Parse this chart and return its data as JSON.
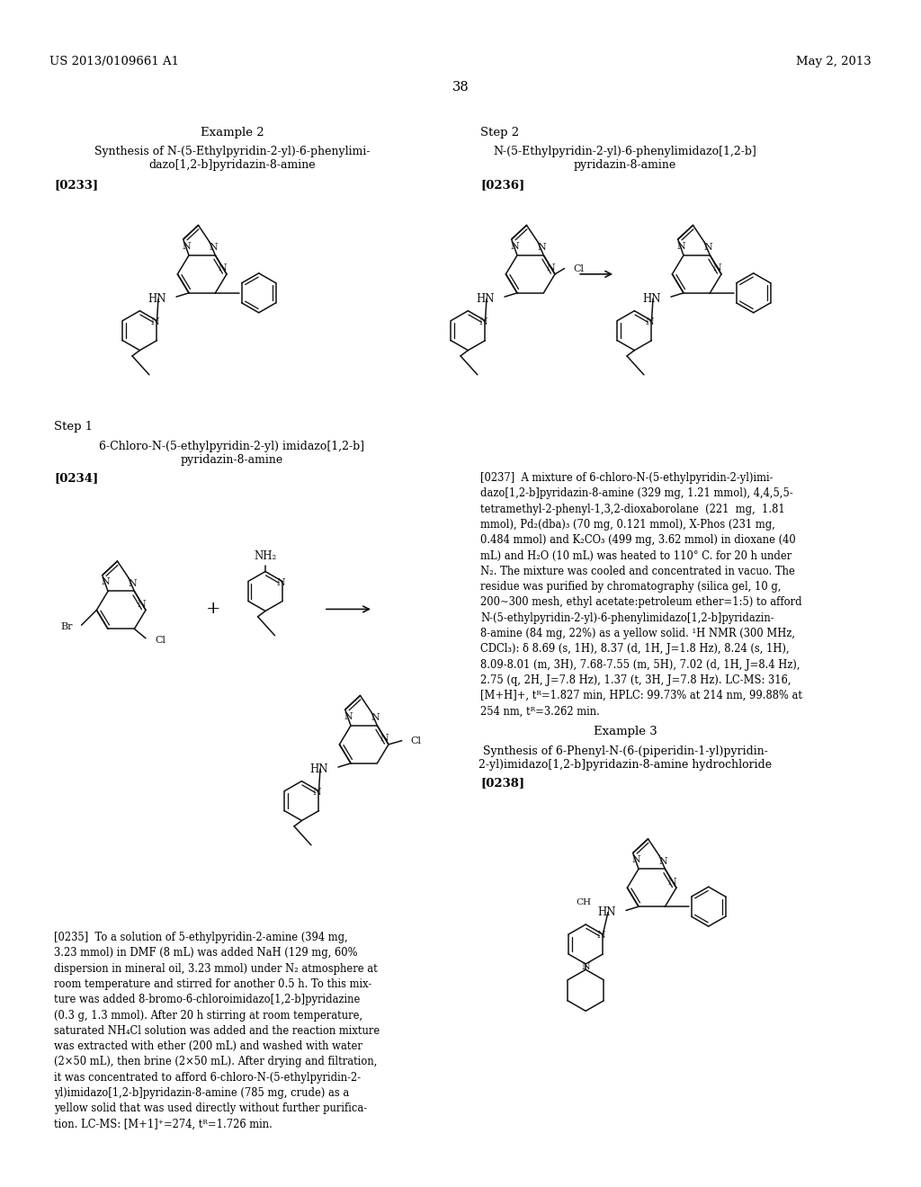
{
  "bg": "#ffffff",
  "header_left": "US 2013/0109661 A1",
  "header_right": "May 2, 2013",
  "page_num": "38",
  "ex2_title": "Example 2",
  "ex2_sub1": "Synthesis of N-(5-Ethylpyridin-2-yl)-6-phenylimi-",
  "ex2_sub2": "dazo[1,2-b]pyridazin-8-amine",
  "ref0233": "[0233]",
  "step2_title": "Step 2",
  "step2_sub1": "N-(5-Ethylpyridin-2-yl)-6-phenylimidazo[1,2-b]",
  "step2_sub2": "pyridazin-8-amine",
  "ref0236": "[0236]",
  "step1_title": "Step 1",
  "step1_sub1": "6-Chloro-N-(5-ethylpyridin-2-yl) imidazo[1,2-b]",
  "step1_sub2": "pyridazin-8-amine",
  "ref0234": "[0234]",
  "ref0235": "[0235]",
  "para0235": "To a solution of 5-ethylpyridin-2-amine (394 mg,\n3.23 mmol) in DMF (8 mL) was added NaH (129 mg, 60%\ndispersion in mineral oil, 3.23 mmol) under N₂ atmosphere at\nroom temperature and stirred for another 0.5 h. To this mix-\nture was added 8-bromo-6-chloroimidazo[1,2-b]pyridazine\n(0.3 g, 1.3 mmol). After 20 h stirring at room temperature,\nsaturated NH₄Cl solution was added and the reaction mixture\nwas extracted with ether (200 mL) and washed with water\n(2×50 mL), then brine (2×50 mL). After drying and filtration,\nit was concentrated to afford 6-chloro-N-(5-ethylpyridin-2-\nyl)imidazo[1,2-b]pyridazin-8-amine (785 mg, crude) as a\nyellow solid that was used directly without further purifica-\ntion. LC-MS: [M+1]⁺=274, tᴿ=1.726 min.",
  "ref0237": "[0237]",
  "para0237": "A mixture of 6-chloro-N-(5-ethylpyridin-2-yl)imi-\ndazo[1,2-b]pyridazin-8-amine (329 mg, 1.21 mmol), 4,4,5,5-\ntetramethyl-2-phenyl-1,3,2-dioxaborolane  (221  mg,  1.81\nmmol), Pd₂(dba)₃ (70 mg, 0.121 mmol), X-Phos (231 mg,\n0.484 mmol) and K₂CO₃ (499 mg, 3.62 mmol) in dioxane (40\nmL) and H₂O (10 mL) was heated to 110° C. for 20 h under\nN₂. The mixture was cooled and concentrated in vacuo. The\nresidue was purified by chromatography (silica gel, 10 g,\n200~300 mesh, ethyl acetate:petroleum ether=1:5) to afford\nN-(5-ethylpyridin-2-yl)-6-phenylimidazo[1,2-b]pyridazin-\n8-amine (84 mg, 22%) as a yellow solid. ¹H NMR (300 MHz,\nCDCl₃): δ 8.69 (s, 1H), 8.37 (d, 1H, J=1.8 Hz), 8.24 (s, 1H),\n8.09-8.01 (m, 3H), 7.68-7.55 (m, 5H), 7.02 (d, 1H, J=8.4 Hz),\n2.75 (q, 2H, J=7.8 Hz), 1.37 (t, 3H, J=7.8 Hz). LC-MS: 316,\n[M+H]+, tᴿ=1.827 min, HPLC: 99.73% at 214 nm, 99.88% at\n254 nm, tᴿ=3.262 min.",
  "ex3_title": "Example 3",
  "ex3_sub1": "Synthesis of 6-Phenyl-N-(6-(piperidin-1-yl)pyridin-",
  "ex3_sub2": "2-yl)imidazo[1,2-b]pyridazin-8-amine hydrochloride",
  "ref0238": "[0238]"
}
